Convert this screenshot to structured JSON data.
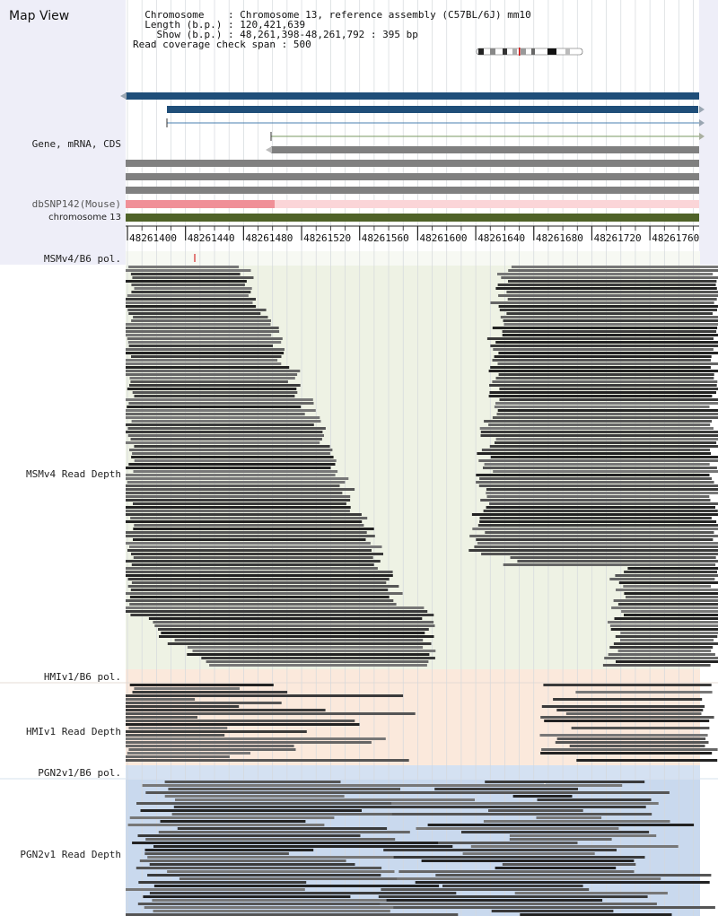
{
  "header": {
    "title": "Map View",
    "chromosome_label": "Chromosome",
    "chromosome_value": "Chromosome 13, reference assembly (C57BL/6J) mm10",
    "length_label": "Length (b.p.)",
    "length_value": "120,421,639",
    "show_label": "Show (b.p.)",
    "show_value": "48,261,398-48,261,792 : 395 bp",
    "coverage_label": "Read coverage check span",
    "coverage_value": "500"
  },
  "tracks": {
    "gene": "Gene, mRNA, CDS",
    "dbsnp": "dbSNP142(Mouse)",
    "chromosome": "chromosome 13",
    "msm_pol": "MSMv4/B6 pol.",
    "msm_depth": "MSMv4 Read Depth",
    "hmi_pol": "HMIv1/B6 pol.",
    "hmi_depth": "HMIv1 Read Depth",
    "pgn_pol": "PGN2v1/B6 pol.",
    "pgn_depth": "PGN2v1 Read Depth"
  },
  "ruler": {
    "ticks": [
      "48261400",
      "48261440",
      "48261480",
      "48261520",
      "48261560",
      "48261600",
      "48261640",
      "48261680",
      "48261720",
      "48261760"
    ]
  },
  "colors": {
    "gene_blue": "#1f4e79",
    "mrna_gray": "#808080",
    "snp_pink": "#f08f97",
    "snp_light": "#fbd5d8",
    "chrom_green": "#4f6228",
    "msm_bg": "#eef2e4",
    "hmi_bg": "#fbe9dc",
    "pgn_bg": "#c9d9ee"
  }
}
